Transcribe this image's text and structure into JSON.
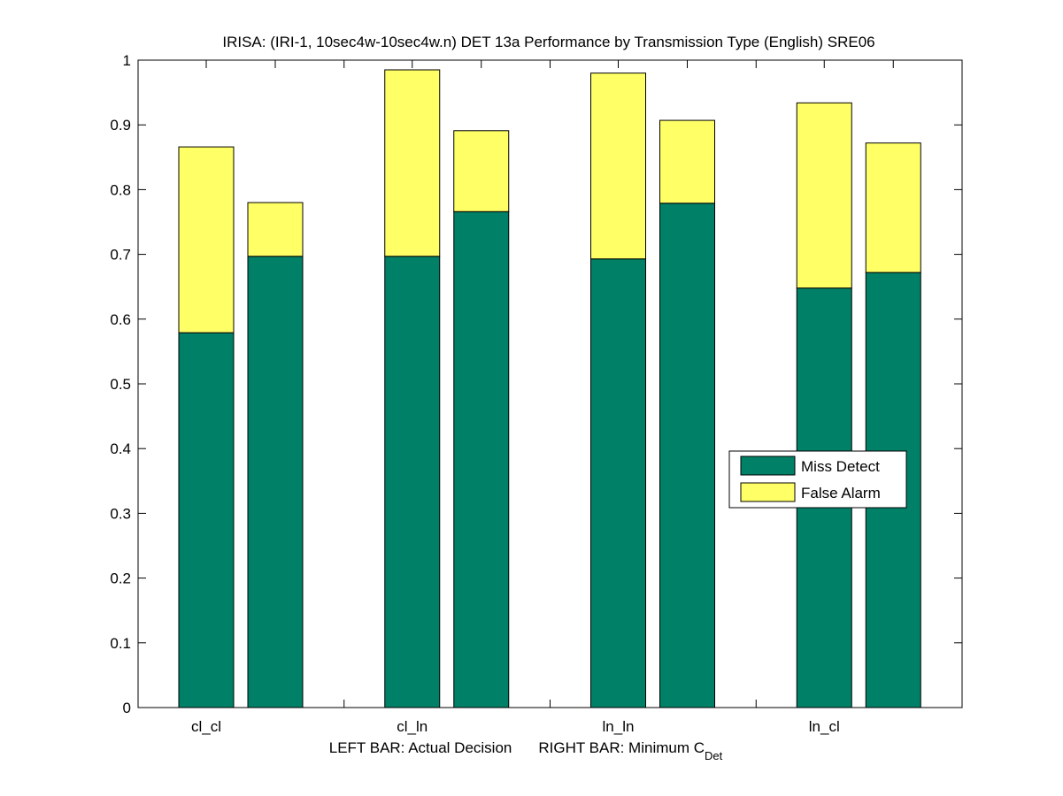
{
  "chart_data": {
    "type": "bar",
    "stacked": true,
    "title": "IRISA: (IRI-1, 10sec4w-10sec4w.n) DET 13a Performance by Transmission Type (English) SRE06",
    "xlabel": {
      "left_part": "LEFT BAR: Actual Decision",
      "right_part": "RIGHT BAR: Minimum C",
      "subscript": "Det"
    },
    "ylabel": "",
    "ylim": [
      0,
      1
    ],
    "yticks": [
      "0",
      "0.1",
      "0.2",
      "0.3",
      "0.4",
      "0.5",
      "0.6",
      "0.7",
      "0.8",
      "0.9",
      "1"
    ],
    "categories": [
      "cl_cl",
      "cl_ln",
      "ln_ln",
      "ln_cl"
    ],
    "bars_per_category": [
      "Actual Decision",
      "Minimum C_Det"
    ],
    "series": [
      {
        "name": "Miss Detect",
        "color": "#008066",
        "values": [
          [
            0.579,
            0.697
          ],
          [
            0.697,
            0.766
          ],
          [
            0.693,
            0.779
          ],
          [
            0.648,
            0.672
          ]
        ]
      },
      {
        "name": "False Alarm",
        "color": "#ffff66",
        "values": [
          [
            0.287,
            0.083
          ],
          [
            0.288,
            0.125
          ],
          [
            0.287,
            0.128
          ],
          [
            0.286,
            0.2
          ]
        ]
      }
    ],
    "legend": {
      "position": "center-right",
      "entries": [
        "Miss Detect",
        "False Alarm"
      ]
    },
    "grid": false
  }
}
